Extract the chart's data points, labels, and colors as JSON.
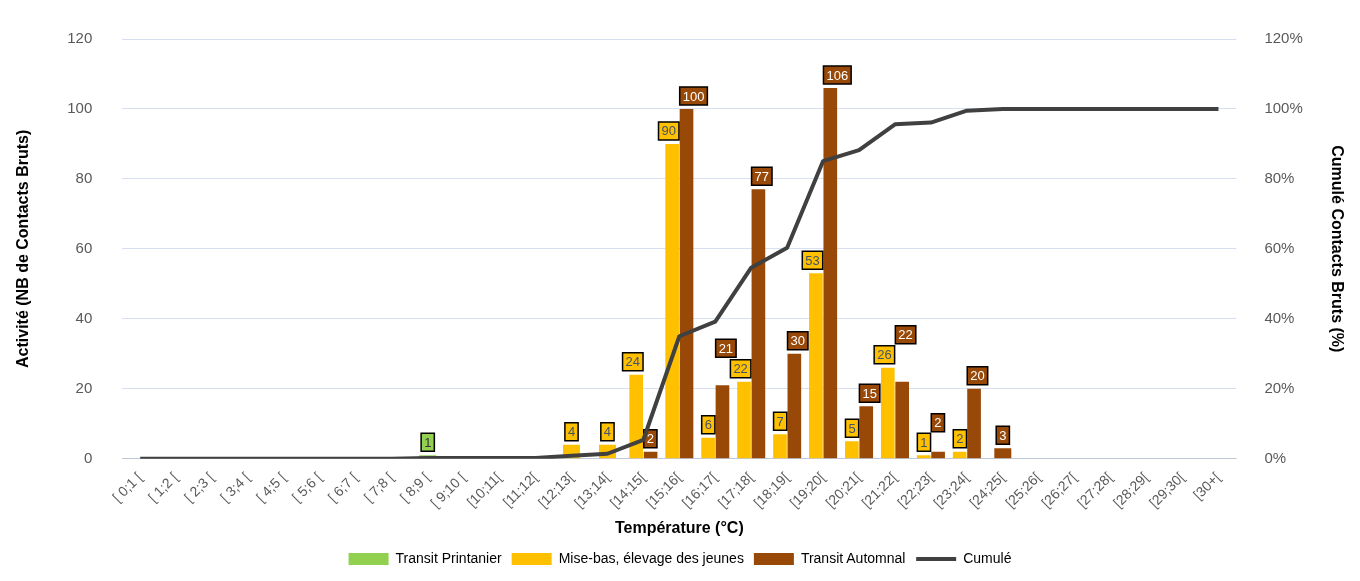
{
  "chart_data": {
    "type": "bar",
    "xlabel": "Température (°C)",
    "ylabel": "Activité (NB de Contacts Bruts)",
    "y2label": "Cumulé Contacts Bruts (%)",
    "categories": [
      "[ 0;1 [",
      "[ 1;2 [",
      "[ 2;3 [",
      "[ 3;4 [",
      "[ 4;5 [",
      "[ 5;6 [",
      "[ 6;7 [",
      "[ 7;8 [",
      "[ 8;9 [",
      "[ 9;10 [",
      "[10;11[",
      "[11;12[",
      "[12;13[",
      "[13;14[",
      "[14;15[",
      "[15;16[",
      "[16;17[",
      "[17;18[",
      "[18;19[",
      "[19;20[",
      "[20;21[",
      "[21;22[",
      "[22;23[",
      "[23;24[",
      "[24;25[",
      "[25;26[",
      "[26;27[",
      "[27;28[",
      "[28;29[",
      "[29;30[",
      "[30+["
    ],
    "series": [
      {
        "name": "Transit Printanier",
        "color": "#92d050",
        "values": [
          null,
          null,
          null,
          null,
          null,
          null,
          null,
          null,
          1,
          null,
          null,
          null,
          null,
          null,
          null,
          null,
          null,
          null,
          null,
          null,
          null,
          null,
          null,
          null,
          null,
          null,
          null,
          null,
          null,
          null,
          null
        ],
        "value_labels": [
          null,
          null,
          null,
          null,
          null,
          null,
          null,
          null,
          "1",
          null,
          null,
          null,
          null,
          null,
          null,
          null,
          null,
          null,
          null,
          null,
          null,
          null,
          null,
          null,
          null,
          null,
          null,
          null,
          null,
          null,
          null
        ]
      },
      {
        "name": "Mise-bas, élevage des jeunes",
        "color": "#ffc000",
        "values": [
          null,
          null,
          null,
          null,
          null,
          null,
          null,
          null,
          null,
          null,
          null,
          null,
          4,
          4,
          24,
          90,
          6,
          22,
          7,
          53,
          5,
          26,
          1,
          2,
          null,
          null,
          null,
          null,
          null,
          null,
          null
        ],
        "value_labels": [
          null,
          null,
          null,
          null,
          null,
          null,
          null,
          null,
          null,
          null,
          null,
          null,
          "4",
          "4",
          "24",
          "90",
          "6",
          "22",
          "7",
          "53",
          "5",
          "26",
          "1",
          "2",
          null,
          null,
          null,
          null,
          null,
          null,
          null
        ]
      },
      {
        "name": "Transit Automnal",
        "color": "#984807",
        "values": [
          null,
          null,
          null,
          null,
          null,
          null,
          null,
          null,
          null,
          null,
          null,
          null,
          null,
          null,
          2,
          100,
          21,
          77,
          30,
          106,
          15,
          22,
          2,
          20,
          3,
          null,
          null,
          null,
          null,
          null,
          null
        ],
        "value_labels": [
          null,
          null,
          null,
          null,
          null,
          null,
          null,
          null,
          null,
          null,
          null,
          null,
          null,
          null,
          "2",
          "100",
          "21",
          "77",
          "30",
          "106",
          "15",
          "22",
          "2",
          "20",
          "3",
          null,
          null,
          null,
          null,
          null,
          null
        ]
      },
      {
        "name": "Cumulé",
        "type": "line",
        "axis": "y2",
        "color": "#404040",
        "values": [
          0,
          0,
          0,
          0,
          0,
          0,
          0,
          0,
          0.2,
          0.2,
          0.2,
          0.2,
          0.8,
          1.4,
          5.4,
          35,
          39.2,
          54.6,
          60.3,
          85.1,
          88.2,
          95.6,
          96.1,
          99.5,
          100,
          100,
          100,
          100,
          100,
          100,
          100
        ]
      }
    ],
    "ylim": [
      0,
      120
    ],
    "yticks": [
      0,
      20,
      40,
      60,
      80,
      100,
      120
    ],
    "y2lim": [
      0,
      120
    ],
    "y2ticks": [
      {
        "value": 0,
        "label": "0%"
      },
      {
        "value": 20,
        "label": "20%"
      },
      {
        "value": 40,
        "label": "40%"
      },
      {
        "value": 60,
        "label": "60%"
      },
      {
        "value": 80,
        "label": "80%"
      },
      {
        "value": 100,
        "label": "100%"
      },
      {
        "value": 120,
        "label": "120%"
      }
    ],
    "grid": "y",
    "legend": "bottom"
  }
}
